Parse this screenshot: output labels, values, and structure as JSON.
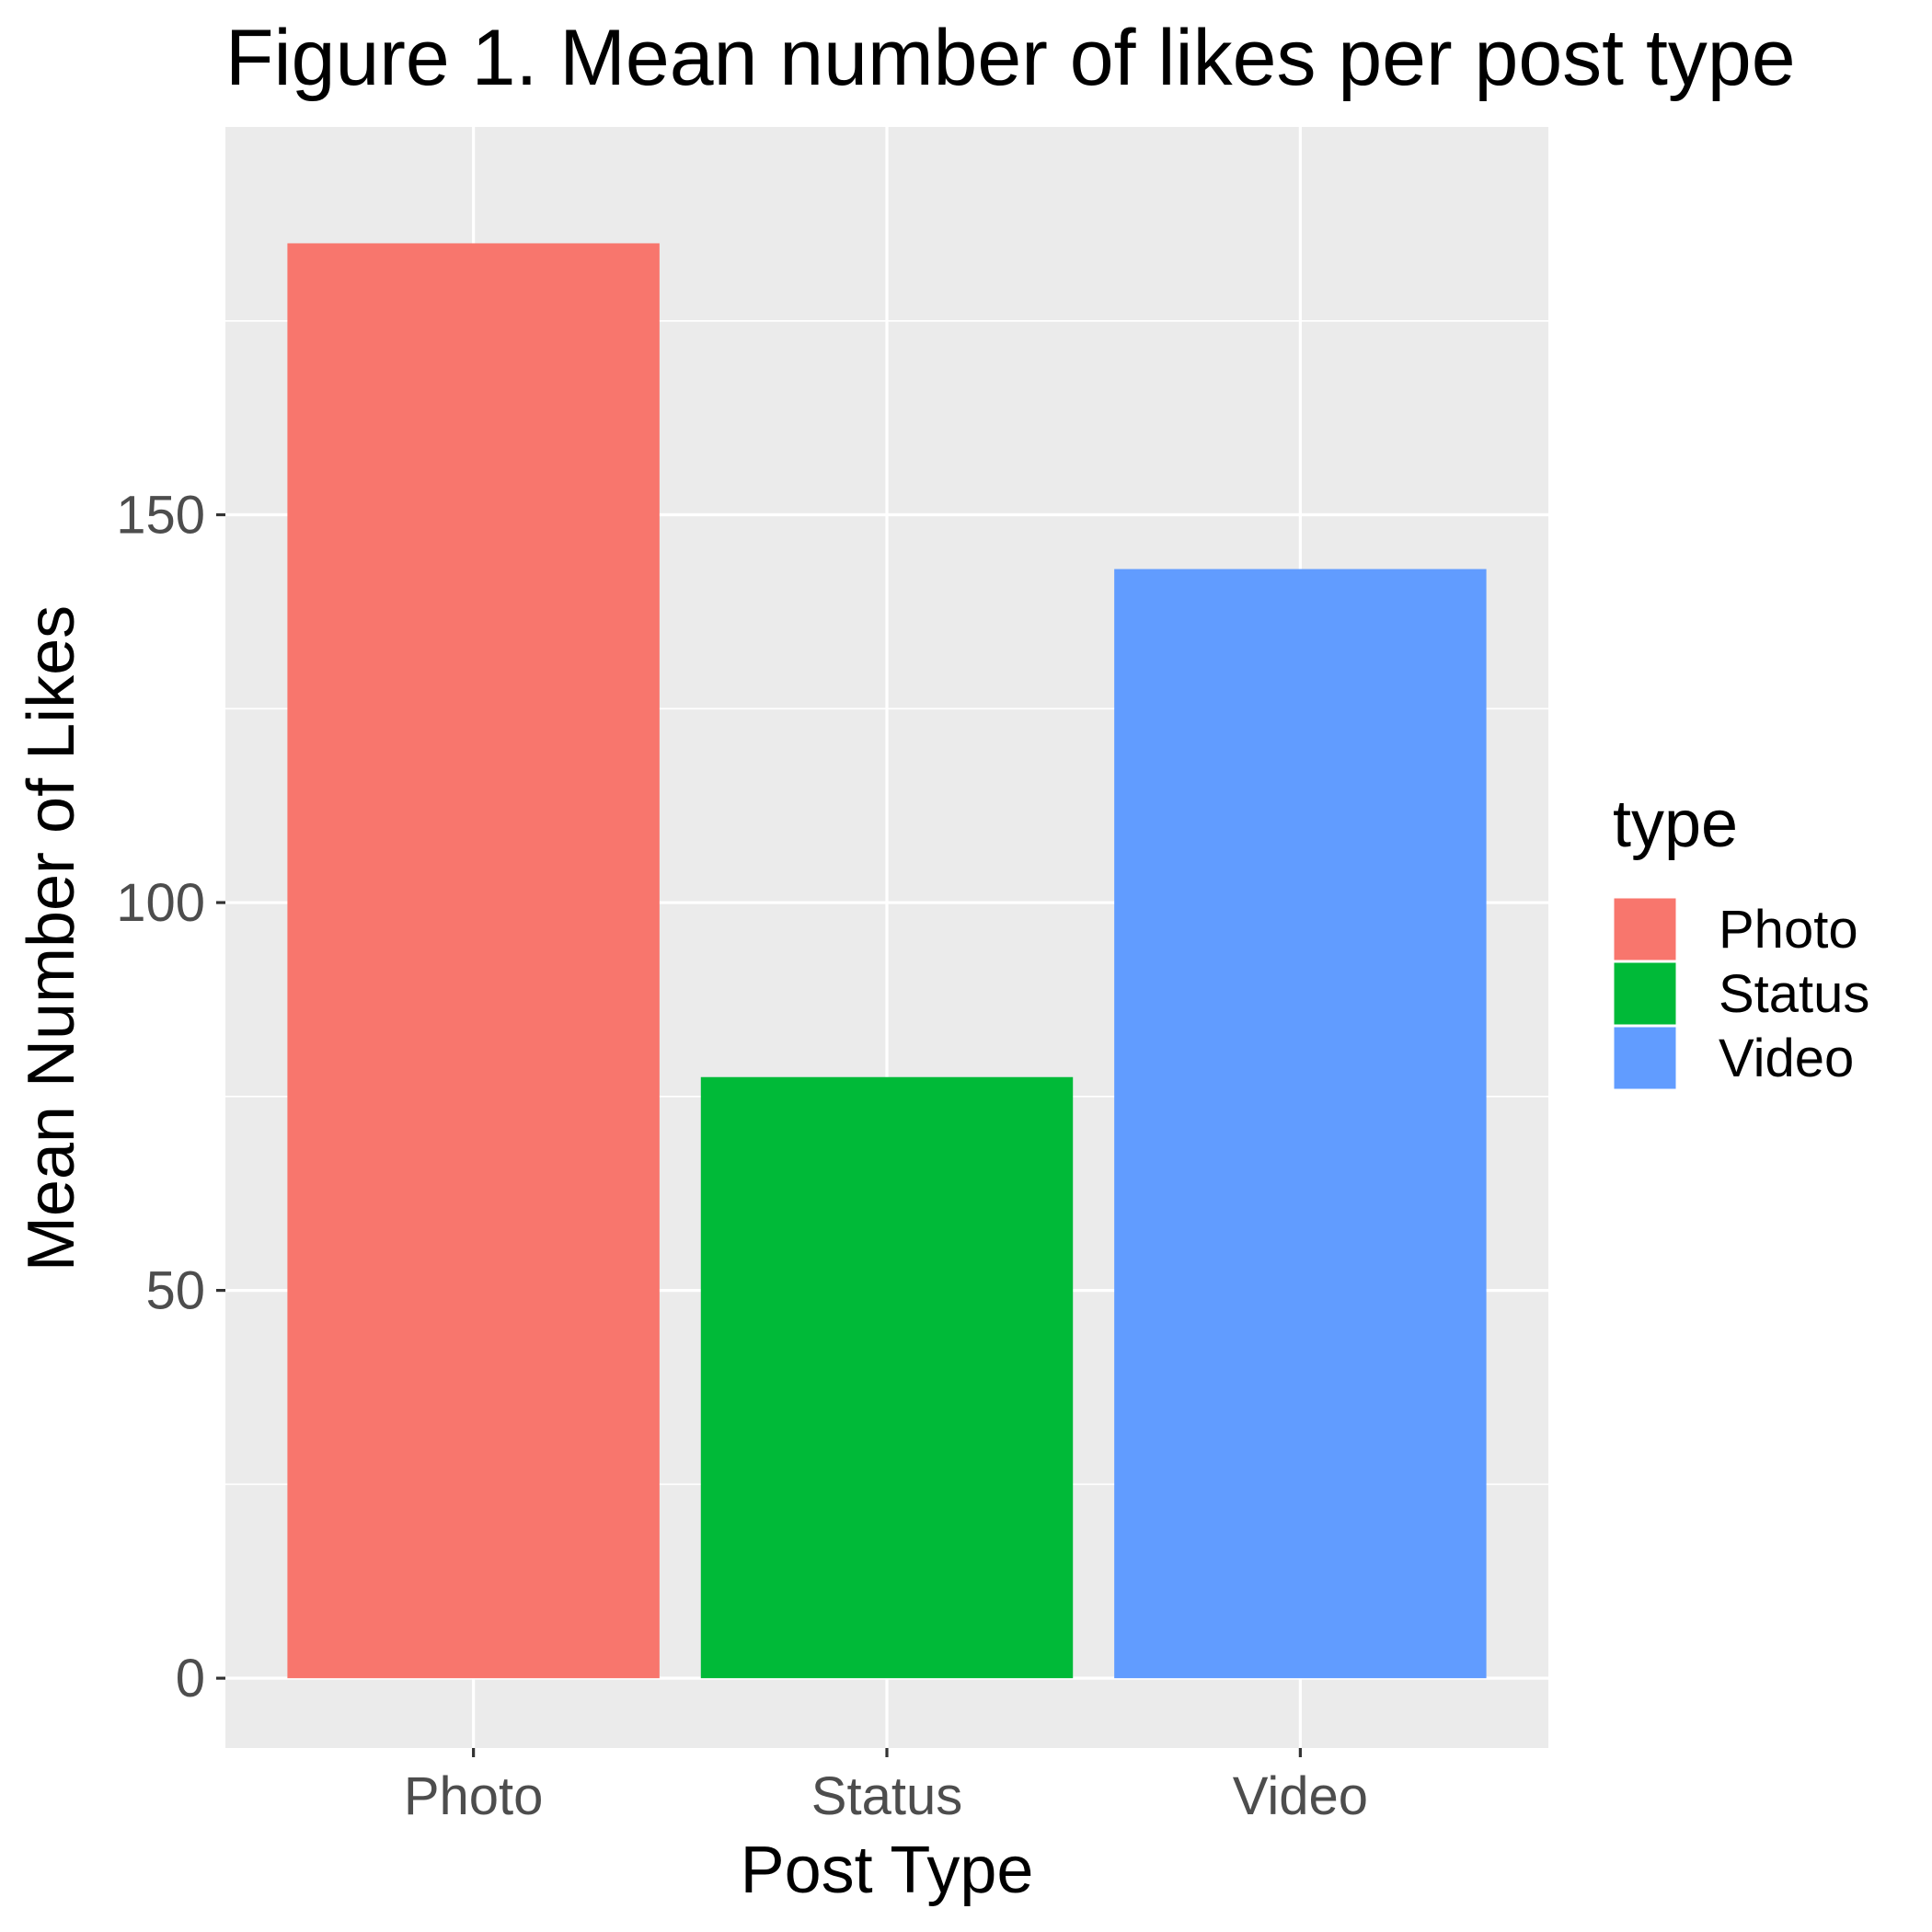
{
  "chart_data": {
    "type": "bar",
    "title": "Figure 1. Mean number of likes per post type",
    "xlabel": "Post Type",
    "ylabel": "Mean Number of Likes",
    "categories": [
      "Photo",
      "Status",
      "Video"
    ],
    "values": [
      185,
      77.5,
      143
    ],
    "colors": [
      "#F8766D",
      "#00BA38",
      "#619CFF"
    ],
    "ylim": [
      -9,
      200
    ],
    "yticks": [
      0,
      50,
      100,
      150
    ],
    "ytick_labels": [
      "0",
      "50",
      "100",
      "150"
    ],
    "grid": true,
    "legend": {
      "title": "type",
      "position": "right",
      "entries": [
        "Photo",
        "Status",
        "Video"
      ]
    }
  }
}
